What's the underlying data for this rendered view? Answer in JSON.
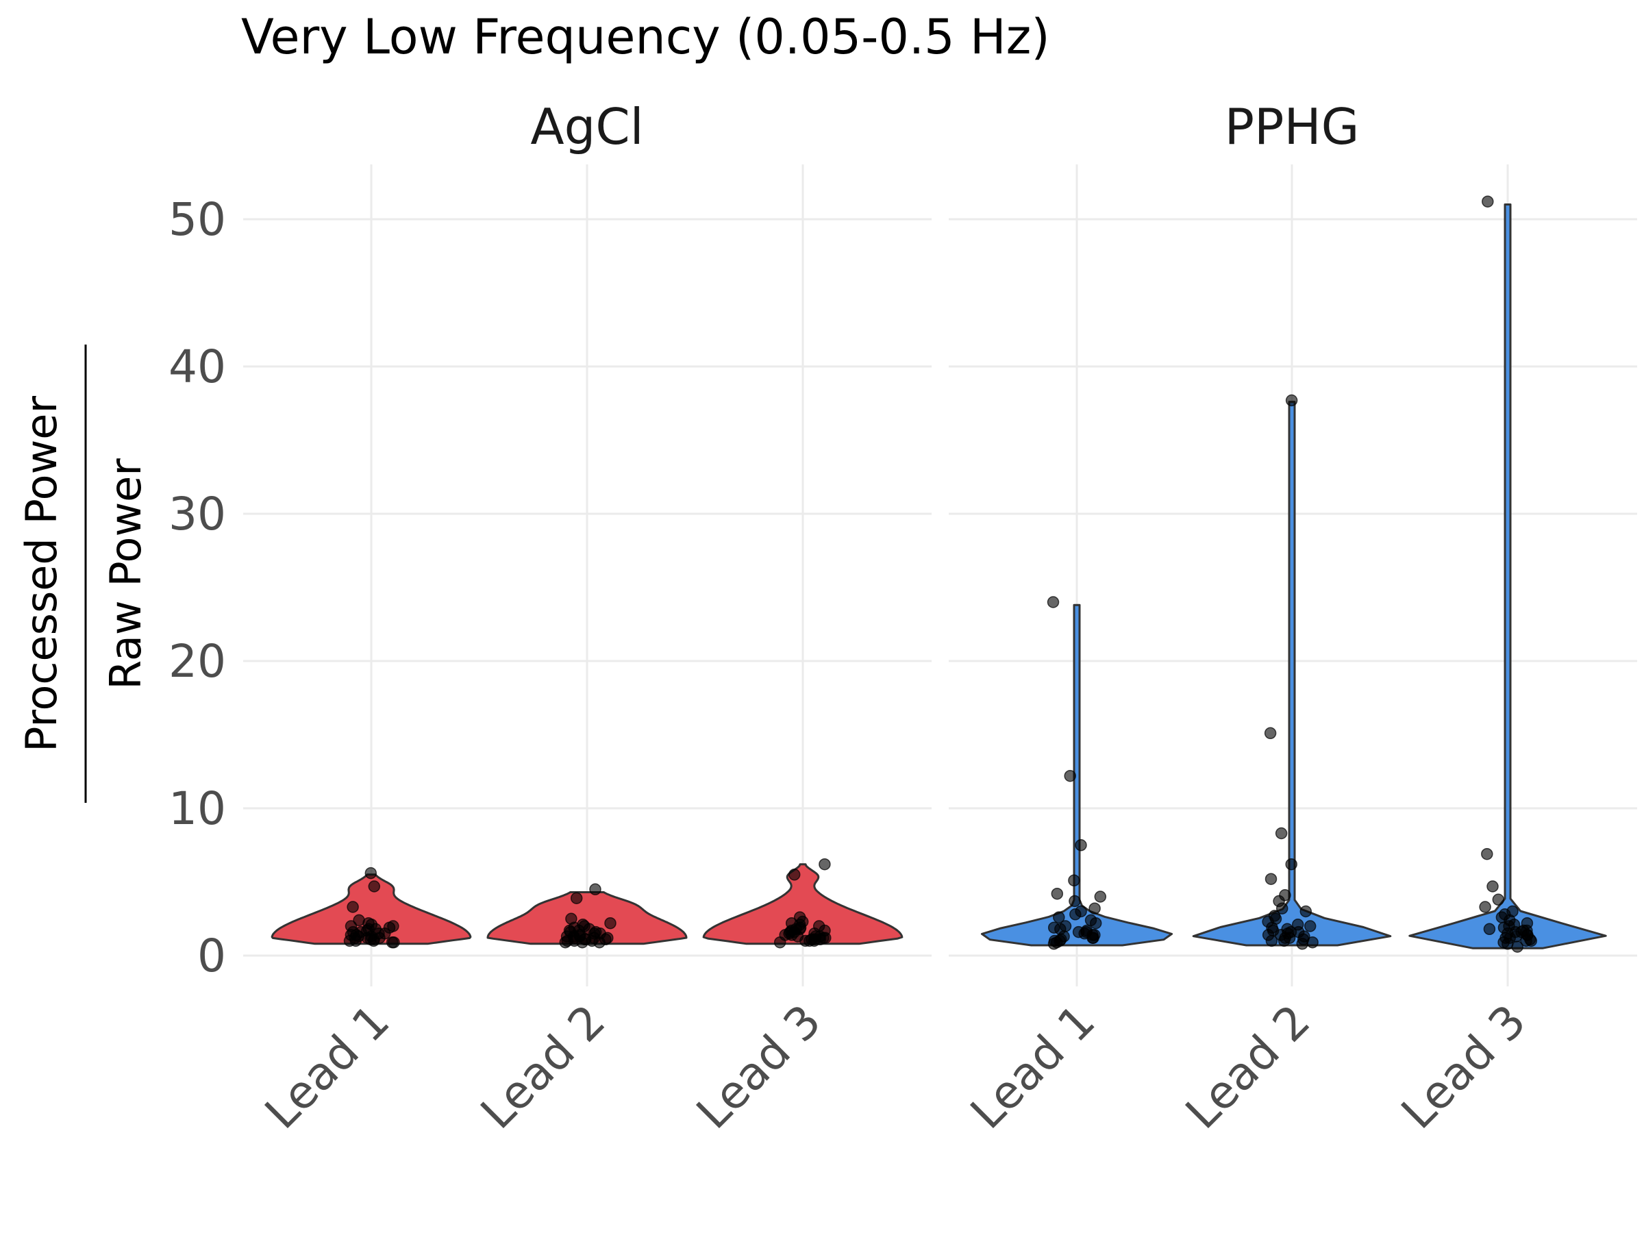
{
  "chart_data": {
    "type": "violin",
    "title": "Very Low Frequency (0.05-0.5 Hz)",
    "ylabel": {
      "numerator": "Processed Power",
      "denominator": "Raw Power"
    },
    "ylim": [
      -1.5,
      54
    ],
    "yticks": [
      0,
      10,
      20,
      30,
      40,
      50
    ],
    "grid": true,
    "legend": "none",
    "categories": [
      "Lead 1",
      "Lead 2",
      "Lead 3"
    ],
    "panels": [
      {
        "name": "AgCl",
        "color": "#e34a53",
        "leads": [
          {
            "lead": "Lead 1",
            "min": 0.8,
            "max": 5.5,
            "points": [
              5.6,
              4.7,
              3.3,
              2.4,
              2.2,
              2.1,
              2.0,
              1.9,
              1.8,
              1.7,
              1.6,
              1.5,
              1.5,
              1.4,
              1.3,
              1.3,
              1.2,
              1.2,
              1.1,
              1.1,
              1.0,
              1.0,
              0.9,
              0.9,
              1.6,
              1.8,
              2.0,
              1.4,
              1.2,
              1.0
            ]
          },
          {
            "lead": "Lead 2",
            "min": 0.8,
            "max": 4.3,
            "points": [
              4.5,
              3.9,
              2.5,
              2.2,
              2.0,
              1.9,
              1.8,
              1.7,
              1.6,
              1.5,
              1.4,
              1.3,
              1.3,
              1.2,
              1.2,
              1.1,
              1.1,
              1.0,
              1.0,
              0.9,
              0.9,
              1.5,
              1.7,
              1.3,
              1.1,
              1.0,
              0.9,
              2.1,
              1.6,
              1.2
            ]
          },
          {
            "lead": "Lead 3",
            "min": 0.8,
            "max": 6.2,
            "points": [
              6.2,
              5.5,
              2.6,
              2.3,
              2.1,
              2.0,
              1.9,
              1.8,
              1.7,
              1.6,
              1.5,
              1.4,
              1.4,
              1.3,
              1.3,
              1.2,
              1.2,
              1.1,
              1.1,
              1.0,
              1.0,
              0.9,
              1.6,
              1.8,
              1.5,
              1.3,
              1.1,
              1.0,
              2.2,
              1.7
            ]
          }
        ]
      },
      {
        "name": "PPHG",
        "color": "#4a90e2",
        "leads": [
          {
            "lead": "Lead 1",
            "min": 0.7,
            "max": 23.8,
            "points": [
              24.0,
              12.2,
              7.5,
              5.1,
              4.2,
              4.0,
              3.7,
              3.2,
              3.0,
              2.8,
              2.6,
              2.4,
              2.2,
              2.0,
              1.9,
              1.8,
              1.7,
              1.6,
              1.5,
              1.4,
              1.3,
              1.2,
              1.1,
              1.0,
              0.9,
              0.8,
              1.6,
              1.4,
              1.2,
              1.0
            ]
          },
          {
            "lead": "Lead 2",
            "min": 0.7,
            "max": 37.6,
            "points": [
              37.7,
              15.1,
              8.3,
              6.2,
              5.2,
              4.1,
              3.7,
              3.2,
              3.0,
              2.7,
              2.5,
              2.3,
              2.1,
              1.9,
              1.8,
              1.7,
              1.6,
              1.5,
              1.4,
              1.3,
              1.2,
              1.1,
              1.0,
              0.9,
              0.8,
              1.6,
              1.4,
              1.2,
              1.0,
              2.0
            ]
          },
          {
            "lead": "Lead 3",
            "min": 0.5,
            "max": 51.0,
            "points": [
              51.2,
              6.9,
              4.7,
              3.8,
              3.3,
              3.0,
              2.8,
              2.6,
              2.4,
              2.2,
              2.0,
              1.9,
              1.8,
              1.7,
              1.6,
              1.5,
              1.4,
              1.3,
              1.2,
              1.1,
              1.0,
              0.9,
              0.8,
              0.6,
              1.6,
              1.4,
              1.2,
              1.0,
              2.1,
              1.7
            ]
          }
        ]
      }
    ]
  }
}
